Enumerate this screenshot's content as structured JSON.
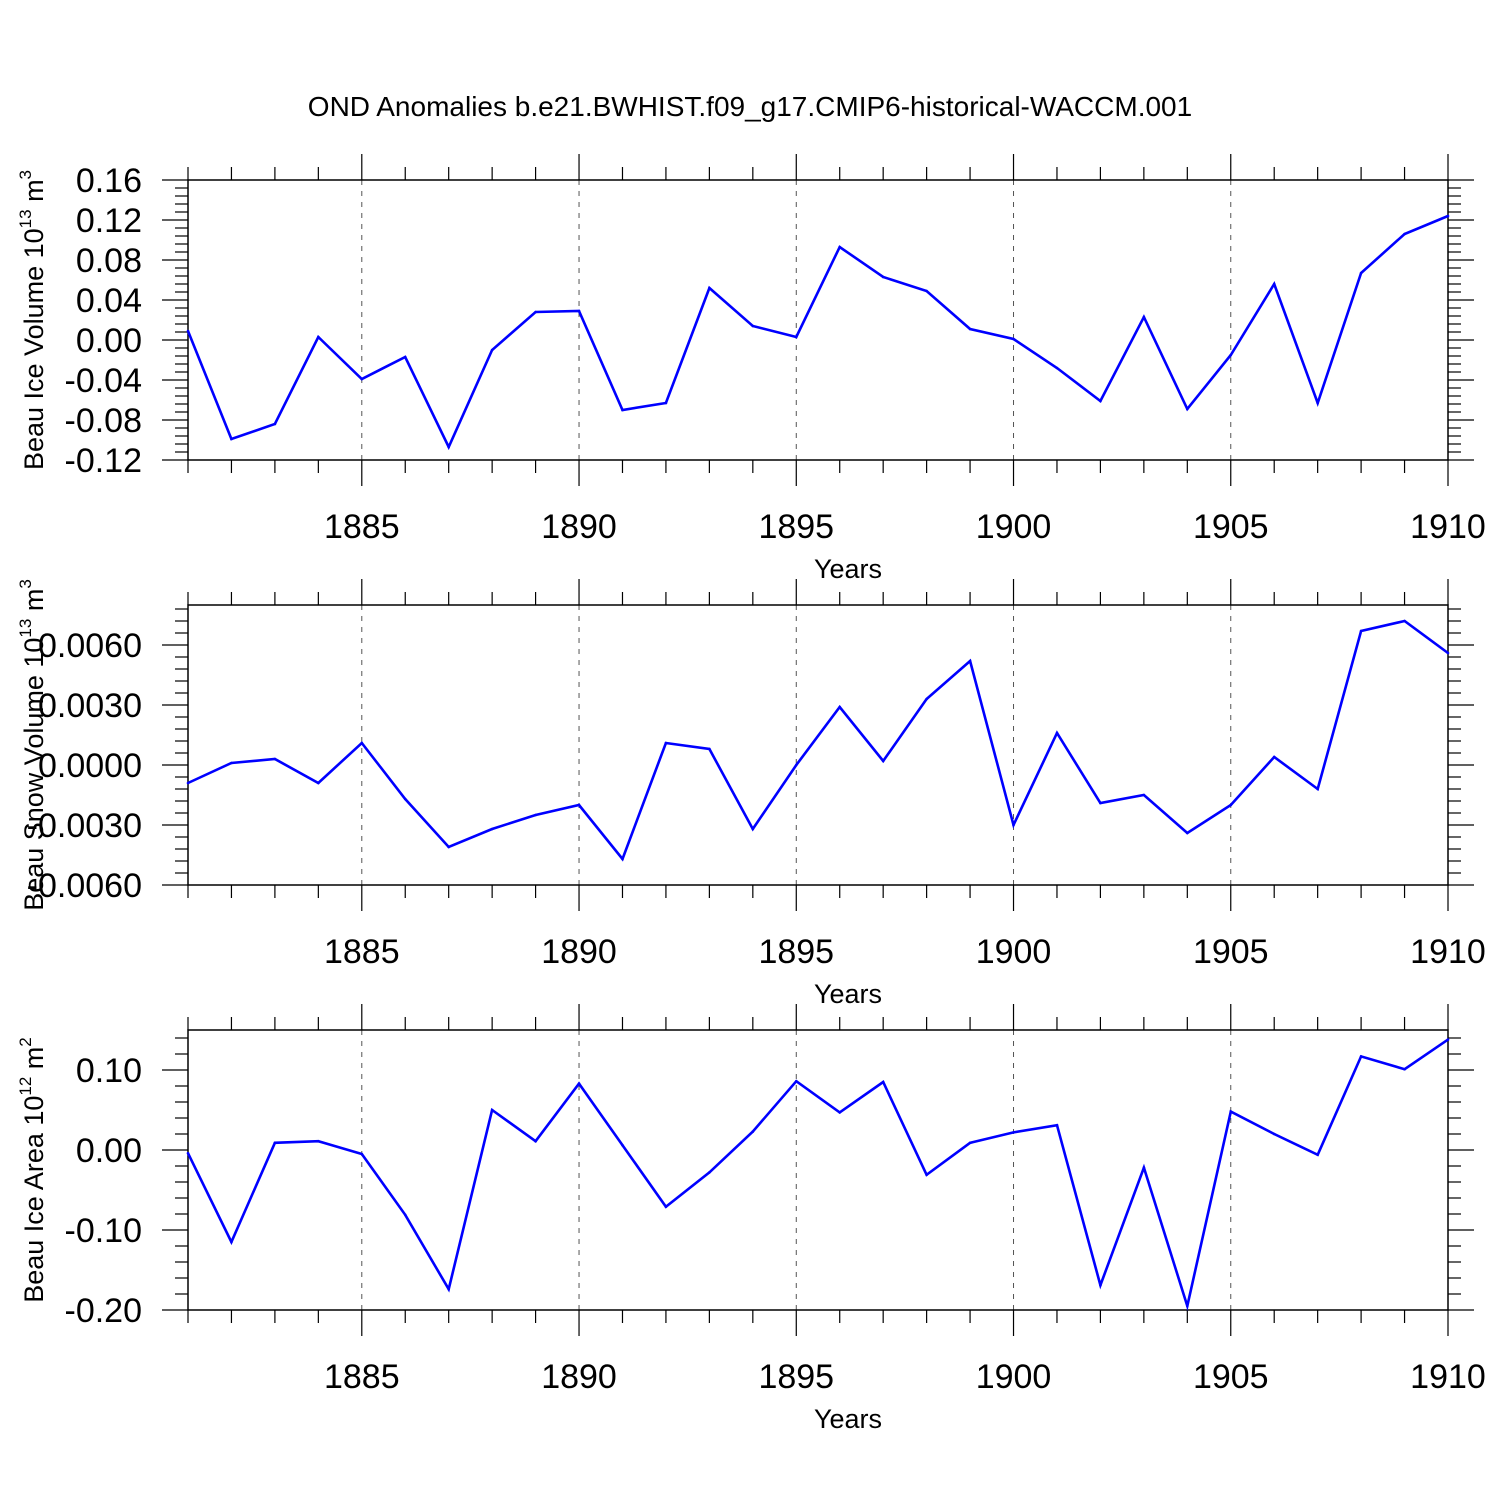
{
  "figure_title": "OND Anomalies b.e21.BWHIST.f09_g17.CMIP6-historical-WACCM.001",
  "chart_data": [
    {
      "type": "line",
      "title": "OND Anomalies b.e21.BWHIST.f09_g17.CMIP6-historical-WACCM.001",
      "xlabel": "Years",
      "ylabel": "Beau Ice Volume 10",
      "ylabel_exp": "13",
      "ylabel_unit": "m",
      "ylabel_unit_exp": "3",
      "xlim": [
        1881,
        1910
      ],
      "ylim": [
        -0.12,
        0.16
      ],
      "xticks": [
        1885,
        1890,
        1895,
        1900,
        1905,
        1910
      ],
      "xtick_labels": [
        "1885",
        "1890",
        "1895",
        "1900",
        "1905",
        "1910"
      ],
      "yticks": [
        -0.12,
        -0.08,
        -0.04,
        0.0,
        0.04,
        0.08,
        0.12,
        0.16
      ],
      "ytick_labels": [
        "-0.12",
        "-0.08",
        "-0.04",
        "0.00",
        "0.04",
        "0.08",
        "0.12",
        "0.16"
      ],
      "grid": "dashed vertical lines at major x ticks",
      "line_color": "#0000ff",
      "x": [
        1881,
        1882,
        1883,
        1884,
        1885,
        1886,
        1887,
        1888,
        1889,
        1890,
        1891,
        1892,
        1893,
        1894,
        1895,
        1896,
        1897,
        1898,
        1899,
        1900,
        1901,
        1902,
        1903,
        1904,
        1905,
        1906,
        1907,
        1908,
        1909,
        1910
      ],
      "y": [
        0.009,
        -0.099,
        -0.084,
        0.003,
        -0.039,
        -0.017,
        -0.107,
        -0.01,
        0.028,
        0.029,
        -0.07,
        -0.063,
        0.052,
        0.014,
        0.003,
        0.093,
        0.063,
        0.049,
        0.011,
        0.001,
        -0.028,
        -0.061,
        0.023,
        -0.069,
        -0.015,
        0.056,
        -0.063,
        0.067,
        0.106,
        0.124
      ]
    },
    {
      "type": "line",
      "title": "",
      "xlabel": "Years",
      "ylabel": "Beau Snow Volume 10",
      "ylabel_exp": "13",
      "ylabel_unit": "m",
      "ylabel_unit_exp": "3",
      "xlim": [
        1881,
        1910
      ],
      "ylim": [
        -0.006,
        0.008
      ],
      "xticks": [
        1885,
        1890,
        1895,
        1900,
        1905,
        1910
      ],
      "xtick_labels": [
        "1885",
        "1890",
        "1895",
        "1900",
        "1905",
        "1910"
      ],
      "yticks": [
        -0.006,
        -0.003,
        0.0,
        0.003,
        0.006
      ],
      "ytick_labels": [
        "-0.0060",
        "-0.0030",
        "0.0000",
        "0.0030",
        "0.0060"
      ],
      "grid": "dashed vertical lines at major x ticks",
      "line_color": "#0000ff",
      "x": [
        1881,
        1882,
        1883,
        1884,
        1885,
        1886,
        1887,
        1888,
        1889,
        1890,
        1891,
        1892,
        1893,
        1894,
        1895,
        1896,
        1897,
        1898,
        1899,
        1900,
        1901,
        1902,
        1903,
        1904,
        1905,
        1906,
        1907,
        1908,
        1909,
        1910
      ],
      "y": [
        -0.0009,
        0.0001,
        0.0003,
        -0.0009,
        0.0011,
        -0.0017,
        -0.0041,
        -0.0032,
        -0.0025,
        -0.002,
        -0.0047,
        0.0011,
        0.0008,
        -0.0032,
        0.0,
        0.0029,
        0.0002,
        0.0033,
        0.0052,
        -0.003,
        0.0016,
        -0.0019,
        -0.0015,
        -0.0034,
        -0.002,
        0.0004,
        -0.0012,
        0.0067,
        0.0072,
        0.0056
      ]
    },
    {
      "type": "line",
      "title": "",
      "xlabel": "Years",
      "ylabel": "Beau Ice Area 10",
      "ylabel_exp": "12",
      "ylabel_unit": "m",
      "ylabel_unit_exp": "2",
      "xlim": [
        1881,
        1910
      ],
      "ylim": [
        -0.2,
        0.15
      ],
      "xticks": [
        1885,
        1890,
        1895,
        1900,
        1905,
        1910
      ],
      "xtick_labels": [
        "1885",
        "1890",
        "1895",
        "1900",
        "1905",
        "1910"
      ],
      "yticks": [
        -0.2,
        -0.1,
        0.0,
        0.1
      ],
      "ytick_labels": [
        "-0.20",
        "-0.10",
        "0.00",
        "0.10"
      ],
      "grid": "dashed vertical lines at major x ticks",
      "line_color": "#0000ff",
      "x": [
        1881,
        1882,
        1883,
        1884,
        1885,
        1886,
        1887,
        1888,
        1889,
        1890,
        1891,
        1892,
        1893,
        1894,
        1895,
        1896,
        1897,
        1898,
        1899,
        1900,
        1901,
        1902,
        1903,
        1904,
        1905,
        1906,
        1907,
        1908,
        1909,
        1910
      ],
      "y": [
        -0.004,
        -0.115,
        0.009,
        0.011,
        -0.005,
        -0.081,
        -0.174,
        0.05,
        0.011,
        0.083,
        0.006,
        -0.071,
        -0.028,
        0.023,
        0.086,
        0.047,
        0.085,
        -0.031,
        0.009,
        0.022,
        0.031,
        -0.169,
        -0.022,
        -0.195,
        0.048,
        0.02,
        -0.006,
        0.117,
        0.101,
        0.138
      ]
    }
  ]
}
